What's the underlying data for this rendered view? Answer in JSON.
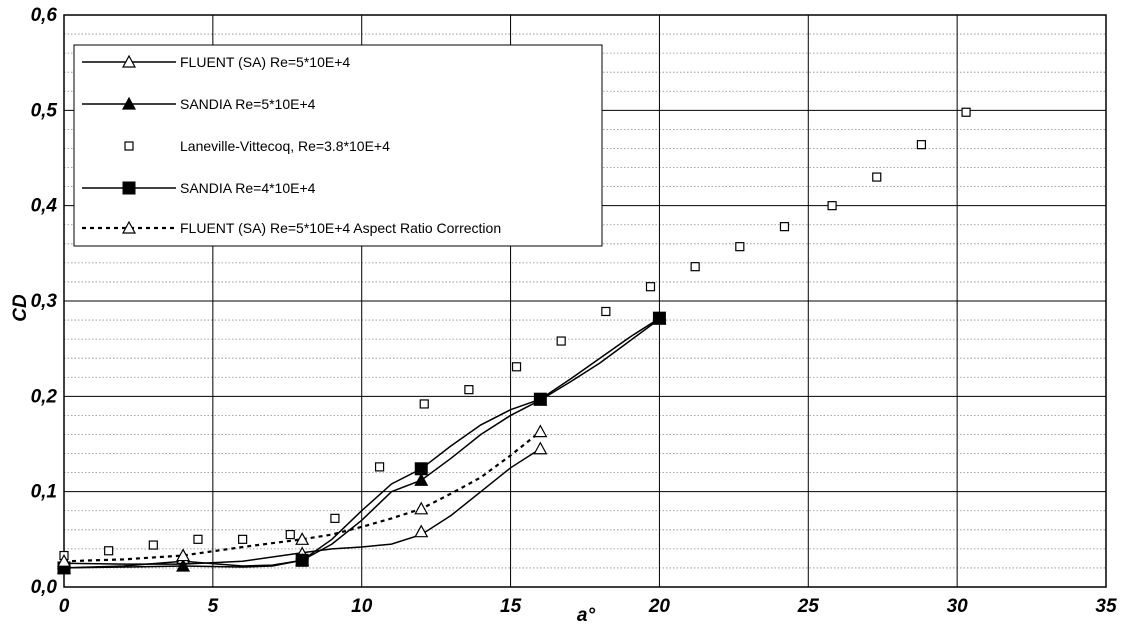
{
  "chart_data": {
    "type": "line",
    "xlabel": "a°",
    "ylabel": "CD",
    "xlim": [
      0,
      35
    ],
    "ylim": [
      0,
      0.6
    ],
    "x_ticks": [
      "0",
      "5",
      "10",
      "15",
      "20",
      "25",
      "30",
      "35"
    ],
    "y_ticks": [
      "0,0",
      "0,1",
      "0,2",
      "0,3",
      "0,4",
      "0,5",
      "0,6"
    ],
    "grid": {
      "major": true,
      "minor_y": true
    },
    "legend_position": "top-left",
    "series": [
      {
        "name": "FLUENT (SA) Re=5*10E+4",
        "marker": "triangle-open",
        "line": "solid",
        "markers": [
          [
            0,
            0.025
          ],
          [
            4,
            0.03
          ],
          [
            8,
            0.035
          ],
          [
            12,
            0.058
          ],
          [
            16,
            0.145
          ]
        ],
        "curve": [
          [
            0,
            0.025
          ],
          [
            2,
            0.024
          ],
          [
            4,
            0.024
          ],
          [
            6,
            0.027
          ],
          [
            8,
            0.036
          ],
          [
            9,
            0.04
          ],
          [
            10,
            0.042
          ],
          [
            11,
            0.045
          ],
          [
            12,
            0.055
          ],
          [
            13,
            0.075
          ],
          [
            14,
            0.1
          ],
          [
            15,
            0.125
          ],
          [
            16,
            0.145
          ]
        ]
      },
      {
        "name": "SANDIA Re=5*10E+4",
        "marker": "triangle-filled",
        "line": "solid",
        "markers": [
          [
            0,
            0.02
          ],
          [
            4,
            0.022
          ],
          [
            8,
            0.028
          ],
          [
            12,
            0.112
          ],
          [
            16,
            0.196
          ],
          [
            20,
            0.281
          ]
        ],
        "curve": [
          [
            0,
            0.02
          ],
          [
            2,
            0.021
          ],
          [
            4,
            0.022
          ],
          [
            6,
            0.021
          ],
          [
            7,
            0.022
          ],
          [
            8,
            0.028
          ],
          [
            9,
            0.045
          ],
          [
            10,
            0.07
          ],
          [
            11,
            0.1
          ],
          [
            12,
            0.112
          ],
          [
            13,
            0.135
          ],
          [
            14,
            0.16
          ],
          [
            15,
            0.18
          ],
          [
            16,
            0.196
          ],
          [
            17,
            0.215
          ],
          [
            18,
            0.235
          ],
          [
            19,
            0.258
          ],
          [
            20,
            0.281
          ]
        ]
      },
      {
        "name": "Laneville-Vittecoq,  Re=3.8*10E+4",
        "marker": "square-open",
        "line": "none",
        "markers": [
          [
            0,
            0.033
          ],
          [
            1.5,
            0.038
          ],
          [
            3,
            0.044
          ],
          [
            4.5,
            0.05
          ],
          [
            6,
            0.05
          ],
          [
            7.6,
            0.055
          ],
          [
            9.1,
            0.072
          ],
          [
            10.6,
            0.126
          ],
          [
            12.1,
            0.192
          ],
          [
            13.6,
            0.207
          ],
          [
            15.2,
            0.231
          ],
          [
            16.7,
            0.258
          ],
          [
            18.2,
            0.289
          ],
          [
            19.7,
            0.315
          ],
          [
            21.2,
            0.336
          ],
          [
            22.7,
            0.357
          ],
          [
            24.2,
            0.378
          ],
          [
            25.8,
            0.4
          ],
          [
            27.3,
            0.43
          ],
          [
            28.8,
            0.464
          ],
          [
            30.3,
            0.498
          ]
        ]
      },
      {
        "name": "SANDIA Re=4*10E+4",
        "marker": "square-filled",
        "line": "solid",
        "markers": [
          [
            0,
            0.02
          ],
          [
            8,
            0.028
          ],
          [
            12,
            0.124
          ],
          [
            16,
            0.197
          ],
          [
            20,
            0.282
          ]
        ],
        "curve": [
          [
            0,
            0.02
          ],
          [
            2,
            0.022
          ],
          [
            4,
            0.027
          ],
          [
            6,
            0.022
          ],
          [
            7,
            0.023
          ],
          [
            8,
            0.028
          ],
          [
            9,
            0.05
          ],
          [
            10,
            0.08
          ],
          [
            11,
            0.108
          ],
          [
            12,
            0.124
          ],
          [
            13,
            0.148
          ],
          [
            14,
            0.17
          ],
          [
            15,
            0.186
          ],
          [
            16,
            0.197
          ],
          [
            17,
            0.218
          ],
          [
            18,
            0.24
          ],
          [
            19,
            0.262
          ],
          [
            20,
            0.282
          ]
        ]
      },
      {
        "name": "FLUENT (SA) Re=5*10E+4 Aspect Ratio Correction",
        "marker": "triangle-open",
        "line": "dotted",
        "markers": [
          [
            0,
            0.027
          ],
          [
            4,
            0.033
          ],
          [
            8,
            0.05
          ],
          [
            12,
            0.082
          ],
          [
            16,
            0.163
          ]
        ],
        "curve": [
          [
            0,
            0.027
          ],
          [
            2,
            0.029
          ],
          [
            4,
            0.033
          ],
          [
            6,
            0.042
          ],
          [
            8,
            0.05
          ],
          [
            9,
            0.055
          ],
          [
            10,
            0.063
          ],
          [
            11,
            0.072
          ],
          [
            12,
            0.082
          ],
          [
            13,
            0.098
          ],
          [
            14,
            0.115
          ],
          [
            15,
            0.138
          ],
          [
            16,
            0.163
          ]
        ]
      }
    ]
  }
}
